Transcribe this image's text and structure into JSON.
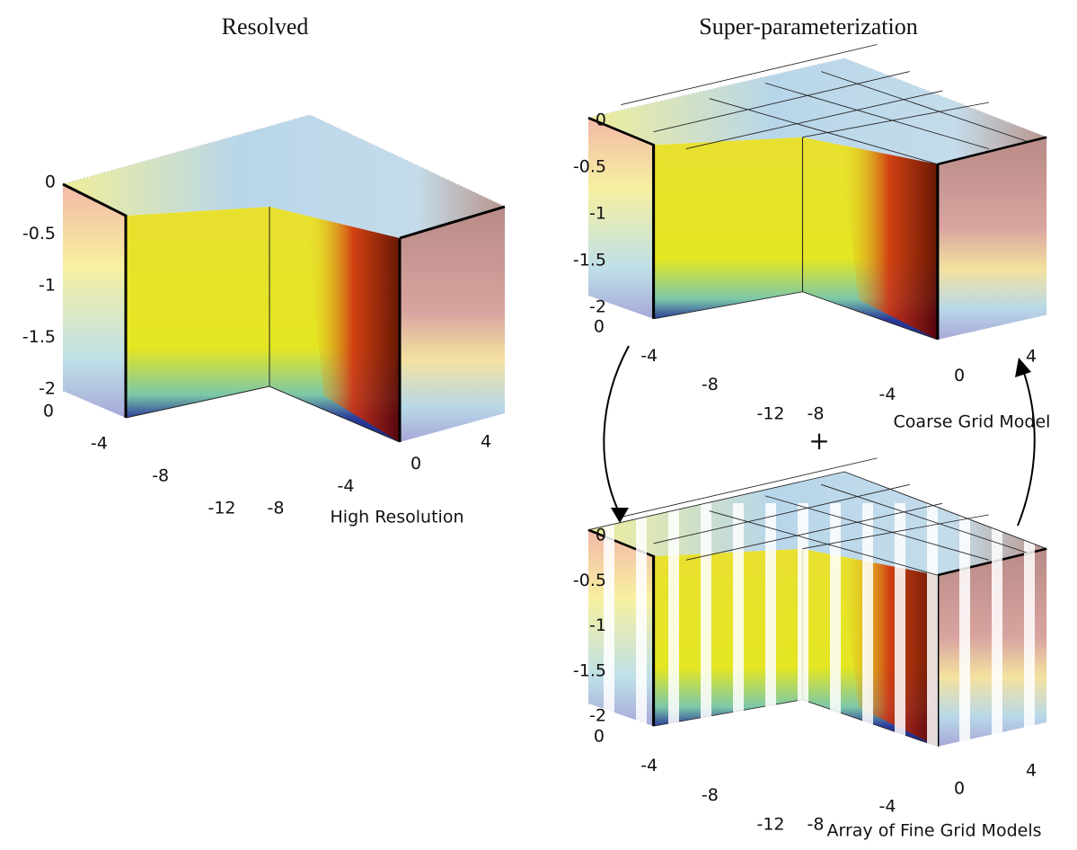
{
  "panels": [
    {
      "title": "Resolved",
      "caption": "High Resolution",
      "z_ticks": [
        0,
        -0.5,
        -1,
        -1.5,
        -2
      ],
      "y_ticks": [
        0,
        -4,
        -8,
        -12
      ],
      "x_ticks": [
        -8,
        -4,
        0,
        4
      ]
    },
    {
      "title": "Super-parameterization",
      "caption": "Coarse Grid Model",
      "z_ticks": [
        0,
        -0.5,
        -1,
        -1.5,
        -2
      ],
      "y_ticks": [
        0,
        -4,
        -8,
        -12
      ],
      "x_ticks": [
        -8,
        -4,
        0,
        4
      ]
    },
    {
      "caption": "Array of Fine Grid Models",
      "z_ticks": [
        0,
        -0.5,
        -1,
        -1.5,
        -2
      ],
      "y_ticks": [
        0,
        -4,
        -8,
        -12
      ],
      "x_ticks": [
        -8,
        -4,
        0,
        4
      ]
    }
  ],
  "plus": "+"
}
